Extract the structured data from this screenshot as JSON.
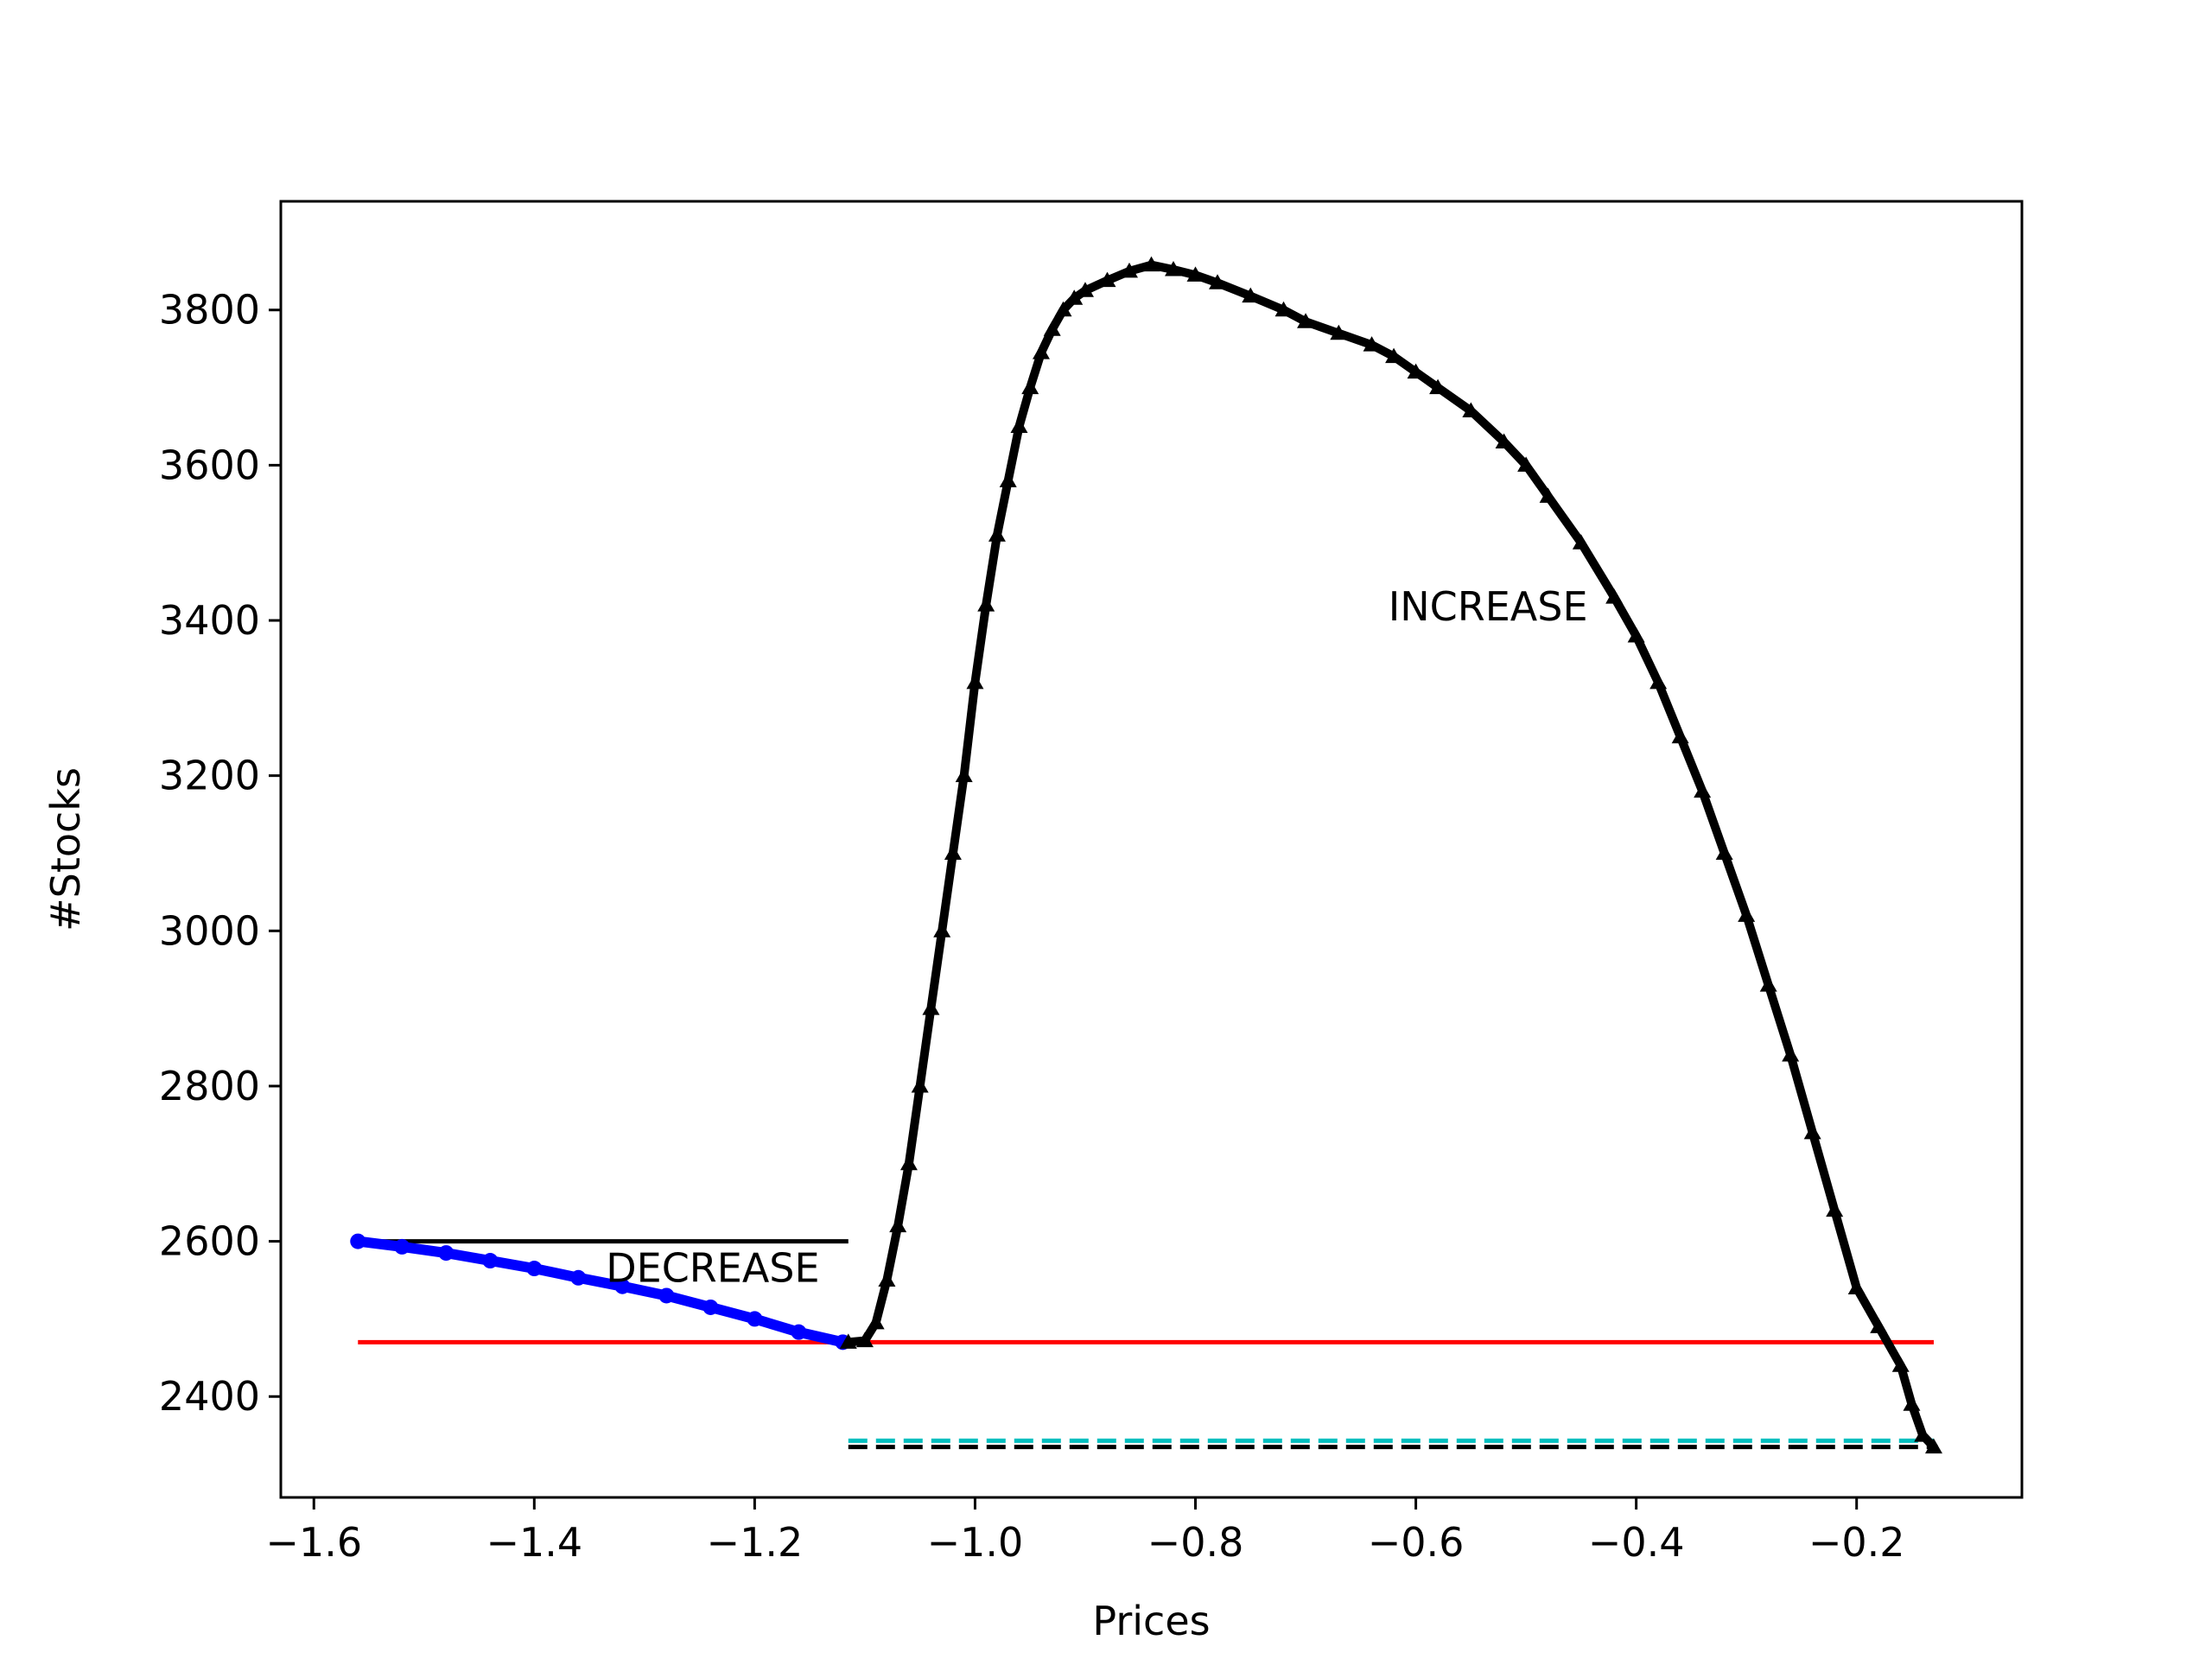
{
  "chart_data": {
    "type": "line",
    "title": "",
    "xlabel": "Prices",
    "ylabel": "#Stocks",
    "xlim": [
      -1.63,
      -0.05
    ],
    "ylim": [
      2270,
      3940
    ],
    "grid": false,
    "x_ticks": [
      -1.6,
      -1.4,
      -1.2,
      -1.0,
      -0.8,
      -0.6,
      -0.4,
      -0.2
    ],
    "x_tick_labels": [
      "−1.6",
      "−1.4",
      "−1.2",
      "−1.0",
      "−0.8",
      "−0.6",
      "−0.4",
      "−0.2"
    ],
    "y_ticks": [
      2400,
      2600,
      2800,
      3000,
      3200,
      3400,
      3600,
      3800
    ],
    "y_tick_labels": [
      "2400",
      "2600",
      "2800",
      "3000",
      "3200",
      "3400",
      "3600",
      "3800"
    ],
    "series": [
      {
        "color": "#0000ff",
        "marker": "circle",
        "x": [
          -1.56,
          -1.52,
          -1.48,
          -1.44,
          -1.4,
          -1.36,
          -1.32,
          -1.28,
          -1.24,
          -1.2,
          -1.16,
          -1.12
        ],
        "y": [
          2600,
          2593,
          2585,
          2575,
          2565,
          2553,
          2542,
          2530,
          2515,
          2500,
          2483,
          2470
        ]
      },
      {
        "color": "#000000",
        "marker": "triangle",
        "x": [
          -1.115,
          -1.1,
          -1.09,
          -1.08,
          -1.07,
          -1.06,
          -1.05,
          -1.04,
          -1.03,
          -1.02,
          -1.01,
          -1.0,
          -0.99,
          -0.98,
          -0.97,
          -0.96,
          -0.95,
          -0.94,
          -0.93,
          -0.92,
          -0.91,
          -0.9,
          -0.88,
          -0.86,
          -0.84,
          -0.82,
          -0.8,
          -0.78,
          -0.75,
          -0.72,
          -0.7,
          -0.67,
          -0.64,
          -0.62,
          -0.6,
          -0.58,
          -0.55,
          -0.52,
          -0.5,
          -0.48,
          -0.45,
          -0.42,
          -0.4,
          -0.38,
          -0.36,
          -0.34,
          -0.32,
          -0.3,
          -0.28,
          -0.26,
          -0.24,
          -0.22,
          -0.2,
          -0.18,
          -0.16,
          -0.15,
          -0.14,
          -0.13
        ],
        "y": [
          2470,
          2472,
          2495,
          2550,
          2620,
          2700,
          2800,
          2900,
          3000,
          3100,
          3200,
          3320,
          3420,
          3510,
          3580,
          3650,
          3700,
          3745,
          3775,
          3800,
          3815,
          3825,
          3838,
          3850,
          3858,
          3852,
          3845,
          3835,
          3818,
          3800,
          3785,
          3770,
          3755,
          3740,
          3720,
          3700,
          3670,
          3630,
          3600,
          3560,
          3500,
          3430,
          3380,
          3320,
          3250,
          3180,
          3100,
          3020,
          2930,
          2840,
          2740,
          2640,
          2540,
          2490,
          2440,
          2390,
          2350,
          2335
        ]
      }
    ],
    "reference_lines": [
      {
        "name": "black-solid",
        "x": [
          -1.56,
          -1.115
        ],
        "y": 2600,
        "color": "#000000",
        "style": "solid"
      },
      {
        "name": "red-solid",
        "x": [
          -1.56,
          -0.13
        ],
        "y": 2470,
        "color": "#ff0000",
        "style": "solid"
      },
      {
        "name": "cyan-dashed",
        "x": [
          -1.115,
          -0.13
        ],
        "y": 2343,
        "color": "#00bfbf",
        "style": "dashed"
      },
      {
        "name": "black-dashed",
        "x": [
          -1.115,
          -0.13
        ],
        "y": 2335,
        "color": "#000000",
        "style": "dashed"
      }
    ],
    "annotations": [
      {
        "text": "DECREASE",
        "x": -1.335,
        "y": 2548
      },
      {
        "text": "INCREASE",
        "x": -0.625,
        "y": 3400
      }
    ]
  }
}
